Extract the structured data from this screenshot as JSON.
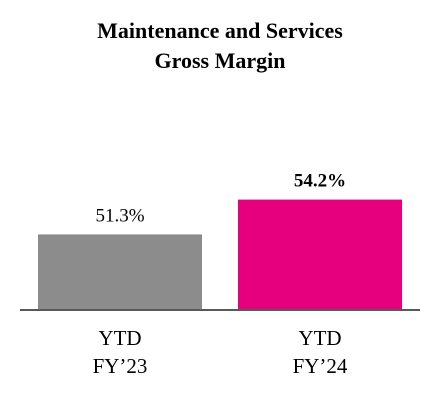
{
  "chart_data": {
    "type": "bar",
    "title": [
      "Maintenance and Services",
      "Gross Margin"
    ],
    "categories": [
      [
        "YTD",
        "FY’23"
      ],
      [
        "YTD",
        "FY’24"
      ]
    ],
    "values": [
      51.3,
      54.2
    ],
    "value_labels": [
      "51.3%",
      "54.2%"
    ],
    "value_label_bold": [
      false,
      true
    ],
    "colors": [
      "#8c8c8c",
      "#e6007e"
    ],
    "axis_color": "#595959",
    "ylim": [
      45,
      55
    ],
    "xlabel": "",
    "ylabel": "",
    "grid": false,
    "legend": "none"
  }
}
